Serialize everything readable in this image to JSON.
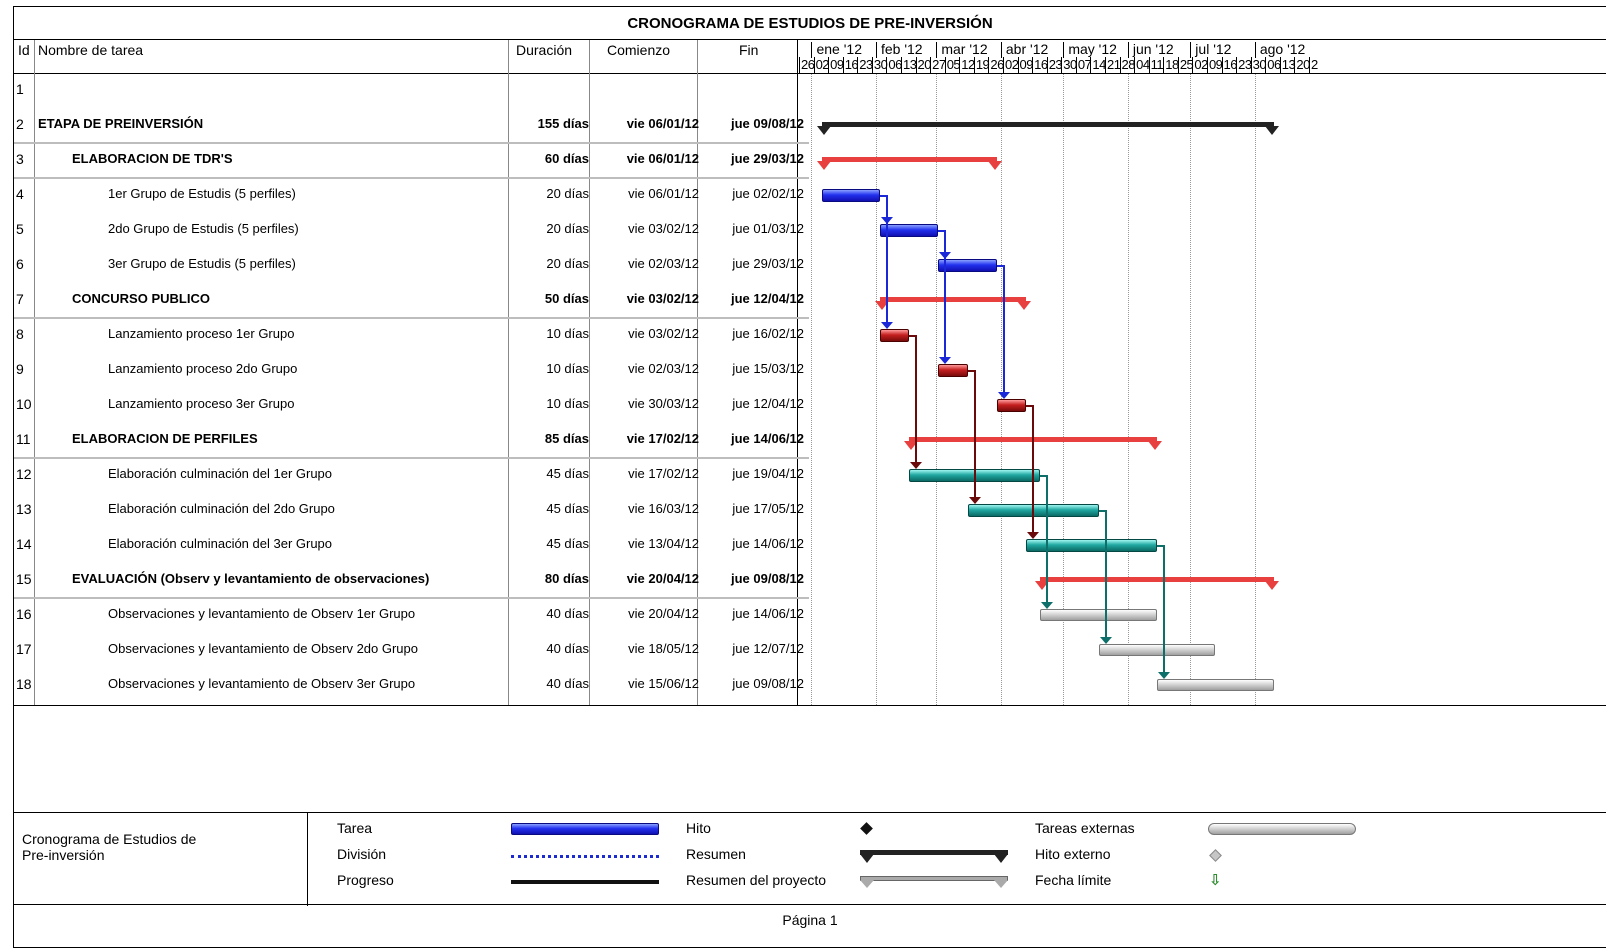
{
  "title": "CRONOGRAMA DE ESTUDIOS DE PRE-INVERSIÓN",
  "columns": {
    "id": "Id",
    "name": "Nombre de tarea",
    "duration": "Duración",
    "start": "Comienzo",
    "end": "Fin"
  },
  "timeline": {
    "months": [
      "ene '12",
      "feb '12",
      "mar '12",
      "abr '12",
      "may '12",
      "jun '12",
      "jul '12",
      "ago '12"
    ],
    "days": [
      "26",
      "02",
      "09",
      "16",
      "23",
      "30",
      "06",
      "13",
      "20",
      "27",
      "05",
      "12",
      "19",
      "26",
      "02",
      "09",
      "16",
      "23",
      "30",
      "07",
      "14",
      "21",
      "28",
      "04",
      "11",
      "18",
      "25",
      "02",
      "09",
      "16",
      "23",
      "30",
      "06",
      "13",
      "20",
      "2"
    ]
  },
  "tasks": [
    {
      "id": "1",
      "name": "",
      "duration": "",
      "start": "",
      "end": "",
      "bold": false
    },
    {
      "id": "2",
      "name": "ETAPA DE PREINVERSIÓN",
      "duration": "155 días",
      "start": "vie 06/01/12",
      "end": "jue 09/08/12",
      "bold": true
    },
    {
      "id": "3",
      "name": "ELABORACION DE TDR'S",
      "duration": "60 días",
      "start": "vie 06/01/12",
      "end": "jue 29/03/12",
      "bold": true
    },
    {
      "id": "4",
      "name": "1er Grupo de Estudis (5 perfiles)",
      "duration": "20 días",
      "start": "vie 06/01/12",
      "end": "jue 02/02/12",
      "bold": false
    },
    {
      "id": "5",
      "name": "2do Grupo de Estudis (5 perfiles)",
      "duration": "20 días",
      "start": "vie 03/02/12",
      "end": "jue 01/03/12",
      "bold": false
    },
    {
      "id": "6",
      "name": "3er Grupo de Estudis (5 perfiles)",
      "duration": "20 días",
      "start": "vie 02/03/12",
      "end": "jue 29/03/12",
      "bold": false
    },
    {
      "id": "7",
      "name": "CONCURSO PUBLICO",
      "duration": "50 días",
      "start": "vie 03/02/12",
      "end": "jue 12/04/12",
      "bold": true
    },
    {
      "id": "8",
      "name": "Lanzamiento proceso 1er Grupo",
      "duration": "10 días",
      "start": "vie 03/02/12",
      "end": "jue 16/02/12",
      "bold": false
    },
    {
      "id": "9",
      "name": "Lanzamiento proceso 2do Grupo",
      "duration": "10 días",
      "start": "vie 02/03/12",
      "end": "jue 15/03/12",
      "bold": false
    },
    {
      "id": "10",
      "name": "Lanzamiento proceso 3er Grupo",
      "duration": "10 días",
      "start": "vie 30/03/12",
      "end": "jue 12/04/12",
      "bold": false
    },
    {
      "id": "11",
      "name": "ELABORACION DE PERFILES",
      "duration": "85 días",
      "start": "vie 17/02/12",
      "end": "jue 14/06/12",
      "bold": true
    },
    {
      "id": "12",
      "name": "Elaboración culminación del 1er Grupo",
      "duration": "45 días",
      "start": "vie 17/02/12",
      "end": "jue 19/04/12",
      "bold": false
    },
    {
      "id": "13",
      "name": "Elaboración culminación del 2do Grupo",
      "duration": "45 días",
      "start": "vie 16/03/12",
      "end": "jue 17/05/12",
      "bold": false
    },
    {
      "id": "14",
      "name": "Elaboración culminación del 3er Grupo",
      "duration": "45 días",
      "start": "vie 13/04/12",
      "end": "jue 14/06/12",
      "bold": false
    },
    {
      "id": "15",
      "name": "EVALUACIÓN (Observ y levantamiento de observaciones)",
      "duration": "80 días",
      "start": "vie 20/04/12",
      "end": "jue 09/08/12",
      "bold": true
    },
    {
      "id": "16",
      "name": "Observaciones y levantamiento de Observ 1er Grupo",
      "duration": "40 días",
      "start": "vie 20/04/12",
      "end": "jue 14/06/12",
      "bold": false
    },
    {
      "id": "17",
      "name": "Observaciones y levantamiento de Observ 2do Grupo",
      "duration": "40 días",
      "start": "vie 18/05/12",
      "end": "jue 12/07/12",
      "bold": false
    },
    {
      "id": "18",
      "name": "Observaciones y levantamiento de Observ 3er Grupo",
      "duration": "40 días",
      "start": "vie 15/06/12",
      "end": "jue 09/08/12",
      "bold": false
    }
  ],
  "legend": {
    "project_name": "Cronograma de Estudios de Pre-inversión",
    "items": {
      "tarea": "Tarea",
      "division": "División",
      "progreso": "Progreso",
      "hito": "Hito",
      "resumen": "Resumen",
      "resumen_proyecto": "Resumen del proyecto",
      "tareas_externas": "Tareas externas",
      "hito_externo": "Hito externo",
      "fecha_limite": "Fecha límite"
    }
  },
  "footer": "Página 1",
  "colors": {
    "task": "#2231ee",
    "concurso": "#c41f1f",
    "elaboracion": "#21a7a1",
    "observaciones": "#cfcfcf",
    "summary": "#e8403f",
    "project_summary": "#222222"
  }
}
